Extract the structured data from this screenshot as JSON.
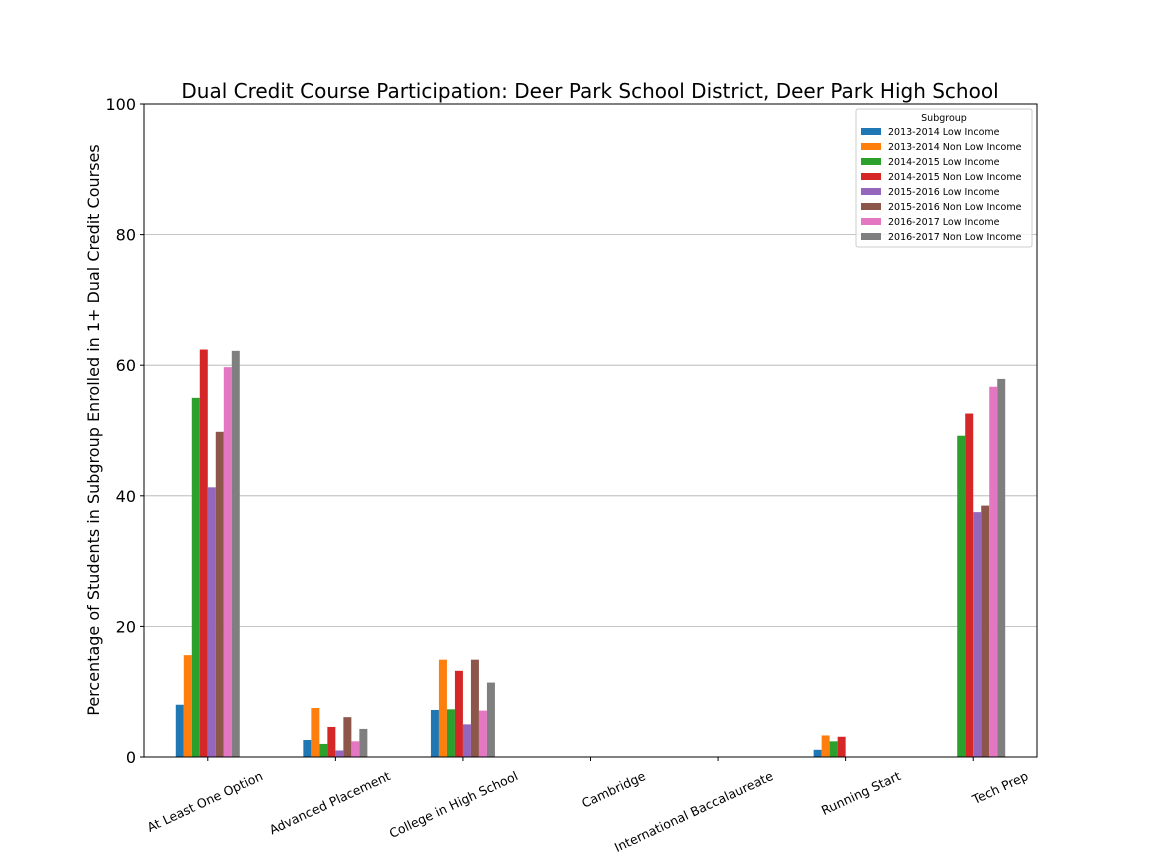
{
  "chart_data": {
    "type": "bar",
    "title": "Dual Credit Course Participation: Deer Park School District, Deer Park High School",
    "xlabel": "",
    "ylabel": "Percentage of Students in Subgroup Enrolled in 1+ Dual Credit Courses",
    "ylim": [
      0,
      100
    ],
    "yticks": [
      "0",
      "20",
      "40",
      "60",
      "80",
      "100"
    ],
    "grid": "horizontal",
    "legend": {
      "title": "Subgroup",
      "placement": "top-right"
    },
    "categories": [
      "At Least One Option",
      "Advanced Placement",
      "College in High School",
      "Cambridge",
      "International Baccalaureate",
      "Running Start",
      "Tech Prep"
    ],
    "series": [
      {
        "name": "2013-2014 Low Income",
        "color": "#1f77b4",
        "values": [
          8.0,
          2.6,
          7.2,
          0,
          0,
          1.1,
          0
        ]
      },
      {
        "name": "2013-2014 Non Low Income",
        "color": "#ff7f0e",
        "values": [
          15.6,
          7.5,
          14.9,
          0,
          0,
          3.3,
          0
        ]
      },
      {
        "name": "2014-2015 Low Income",
        "color": "#2ca02c",
        "values": [
          55.0,
          2.0,
          7.3,
          0,
          0,
          2.4,
          49.2
        ]
      },
      {
        "name": "2014-2015 Non Low Income",
        "color": "#d62728",
        "values": [
          62.4,
          4.6,
          13.2,
          0,
          0,
          3.1,
          52.6
        ]
      },
      {
        "name": "2015-2016 Low Income",
        "color": "#9467bd",
        "values": [
          41.3,
          1.0,
          5.0,
          0,
          0,
          0,
          37.5
        ]
      },
      {
        "name": "2015-2016 Non Low Income",
        "color": "#8c564b",
        "values": [
          49.8,
          6.1,
          14.9,
          0,
          0,
          0,
          38.5
        ]
      },
      {
        "name": "2016-2017 Low Income",
        "color": "#e377c2",
        "values": [
          59.7,
          2.4,
          7.1,
          0,
          0,
          0,
          56.7
        ]
      },
      {
        "name": "2016-2017 Non Low Income",
        "color": "#7f7f7f",
        "values": [
          62.2,
          4.3,
          11.4,
          0,
          0,
          0,
          57.9
        ]
      }
    ]
  }
}
